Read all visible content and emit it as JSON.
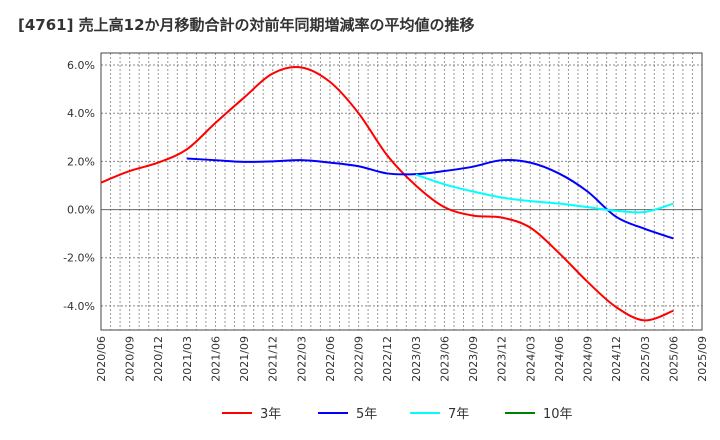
{
  "title": "[4761]  売上高12か月移動合計の対前年同期増減率の平均値の推移",
  "chart_data": {
    "type": "line",
    "title": "[4761]  売上高12か月移動合計の対前年同期増減率の平均値の推移",
    "xlabel": "",
    "ylabel": "",
    "ylim": [
      -5,
      6.5
    ],
    "yticks": [
      6,
      4,
      2,
      0,
      -2,
      -4
    ],
    "ytick_labels": [
      "6.0%",
      "4.0%",
      "2.0%",
      "0.0%",
      "-2.0%",
      "-4.0%"
    ],
    "xtick_labels": [
      "2020/06",
      "2020/09",
      "2020/12",
      "2021/03",
      "2021/06",
      "2021/09",
      "2021/12",
      "2022/03",
      "2022/06",
      "2022/09",
      "2022/12",
      "2023/03",
      "2023/06",
      "2023/09",
      "2023/12",
      "2024/03",
      "2024/06",
      "2024/09",
      "2024/12",
      "2025/03",
      "2025/06",
      "2025/09"
    ],
    "grid": true,
    "legend_position": "bottom",
    "series": [
      {
        "name": "3年",
        "color": "#ff0000",
        "start": "2020/06",
        "values": [
          1.12,
          1.6,
          1.95,
          2.5,
          3.6,
          4.65,
          5.65,
          5.9,
          5.3,
          4.0,
          2.25,
          1.0,
          0.1,
          -0.25,
          -0.33,
          -0.75,
          -1.8,
          -3.0,
          -4.05,
          -4.6,
          -4.2
        ]
      },
      {
        "name": "5年",
        "color": "#0000ff",
        "start": "2021/03",
        "values": [
          2.12,
          2.05,
          1.98,
          2.0,
          2.05,
          1.95,
          1.8,
          1.5,
          1.47,
          1.6,
          1.78,
          2.05,
          1.95,
          1.5,
          0.75,
          -0.3,
          -0.8,
          -1.2
        ]
      },
      {
        "name": "7年",
        "color": "#00ffff",
        "start": "2023/03",
        "values": [
          1.45,
          1.05,
          0.75,
          0.5,
          0.35,
          0.25,
          0.1,
          -0.05,
          -0.1,
          0.25
        ]
      },
      {
        "name": "10年",
        "color": "#008000",
        "start": "2025/06",
        "values": []
      }
    ]
  }
}
